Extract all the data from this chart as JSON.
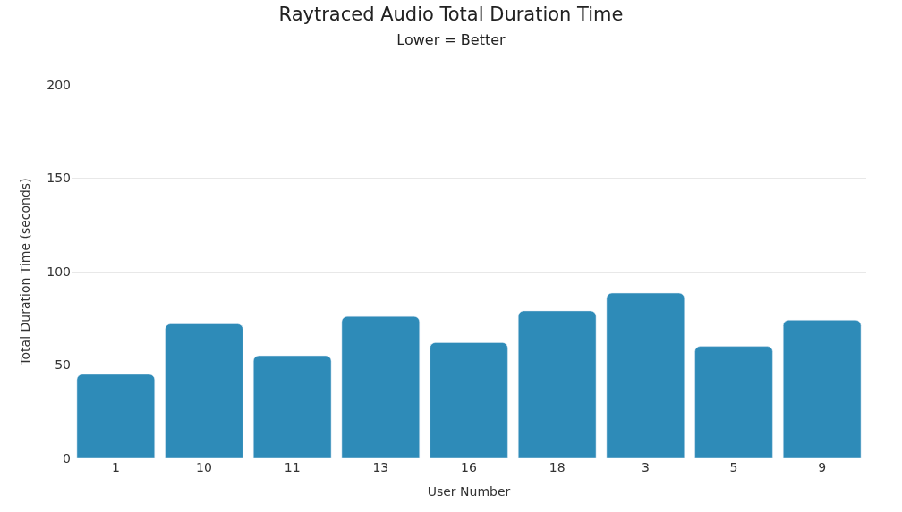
{
  "chart_data": {
    "type": "bar",
    "title": "Raytraced Audio Total Duration Time",
    "subtitle": "Lower = Better",
    "xlabel": "User Number",
    "ylabel": "Total Duration Time (seconds)",
    "categories": [
      "1",
      "10",
      "11",
      "13",
      "16",
      "18",
      "3",
      "5",
      "9"
    ],
    "values": [
      45,
      72,
      55,
      76,
      62,
      79,
      88.5,
      60,
      74
    ],
    "color": "#2e8bb8",
    "ylim": [
      0,
      200
    ],
    "yticks": [
      0,
      50,
      100,
      150,
      200
    ],
    "grid": "y",
    "legend": false
  }
}
